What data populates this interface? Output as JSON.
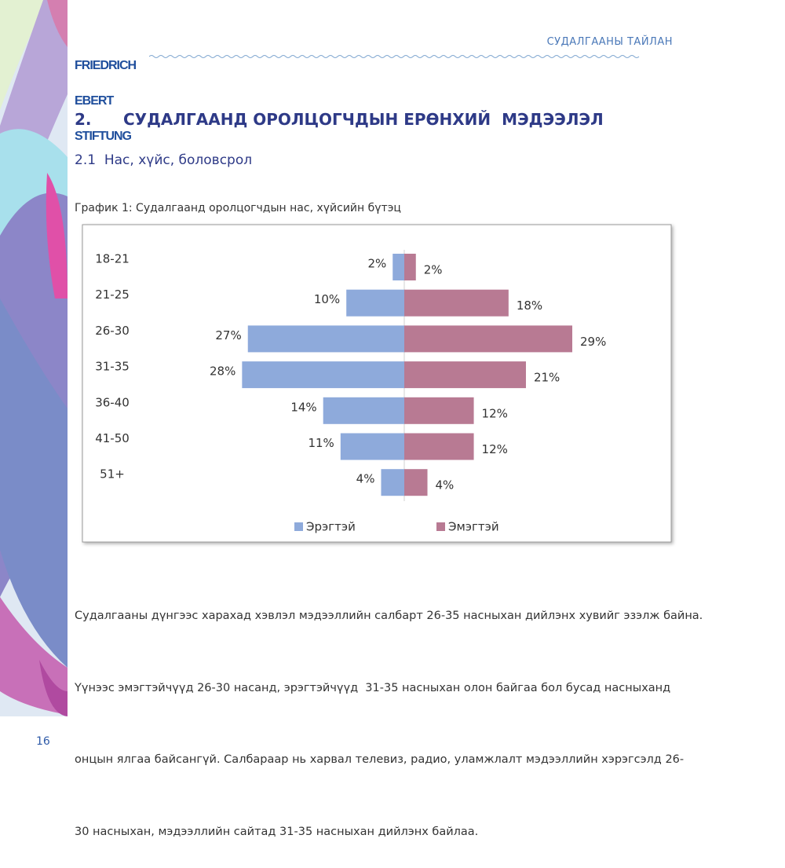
{
  "header": {
    "logo": [
      "FRIEDRICH",
      "EBERT",
      "STIFTUNG"
    ],
    "running_title": "СУДАЛГААНЫ ТАЙЛАН"
  },
  "section": {
    "number": "2.",
    "title": "СУДАЛГААНД ОРОЛЦОГЧДЫН ЕРӨНХИЙ  МЭДЭЭЛЭЛ"
  },
  "subsection": "2.1  Нас, хүйс, боловсрол",
  "caption": "График 1: Судалгаанд оролцогчдын нас, хүйсийн бүтэц",
  "chart_data": {
    "type": "pyramid",
    "categories": [
      "18-21",
      "21-25",
      "26-30",
      "31-35",
      "36-40",
      "41-50",
      "51+"
    ],
    "series": [
      {
        "name": "Эрэгтэй",
        "color": "#8eaadb",
        "values": [
          2,
          10,
          27,
          28,
          14,
          11,
          4
        ],
        "value_labels": [
          "2%",
          "10%",
          "27%",
          "28%",
          "14%",
          "11%",
          "4%"
        ]
      },
      {
        "name": "Эмэгтэй",
        "color": "#b87a93",
        "values": [
          2,
          18,
          29,
          21,
          12,
          12,
          4
        ],
        "value_labels": [
          "2%",
          "18%",
          "29%",
          "21%",
          "12%",
          "12%",
          "4%"
        ]
      }
    ],
    "legend": "bottom"
  },
  "paragraph": [
    "Судалгааны дүнгээс харахад хэвлэл мэдээллийн салбарт 26-35 насныхан дийлэнх хувийг эзэлж байна.",
    "Үүнээс эмэгтэйчүүд 26-30 насанд, эрэгтэйчүүд  31-35 насныхан олон байгаа бол бусад насныханд",
    "онцын ялгаа байсангүй. Салбараар нь харвал телевиз, радио, уламжлалт мэдээллийн хэрэгсэлд 26-",
    "30 насныхан, мэдээллийн сайтад 31-35 насныхан дийлэнх байлаа."
  ],
  "page_number": "16"
}
